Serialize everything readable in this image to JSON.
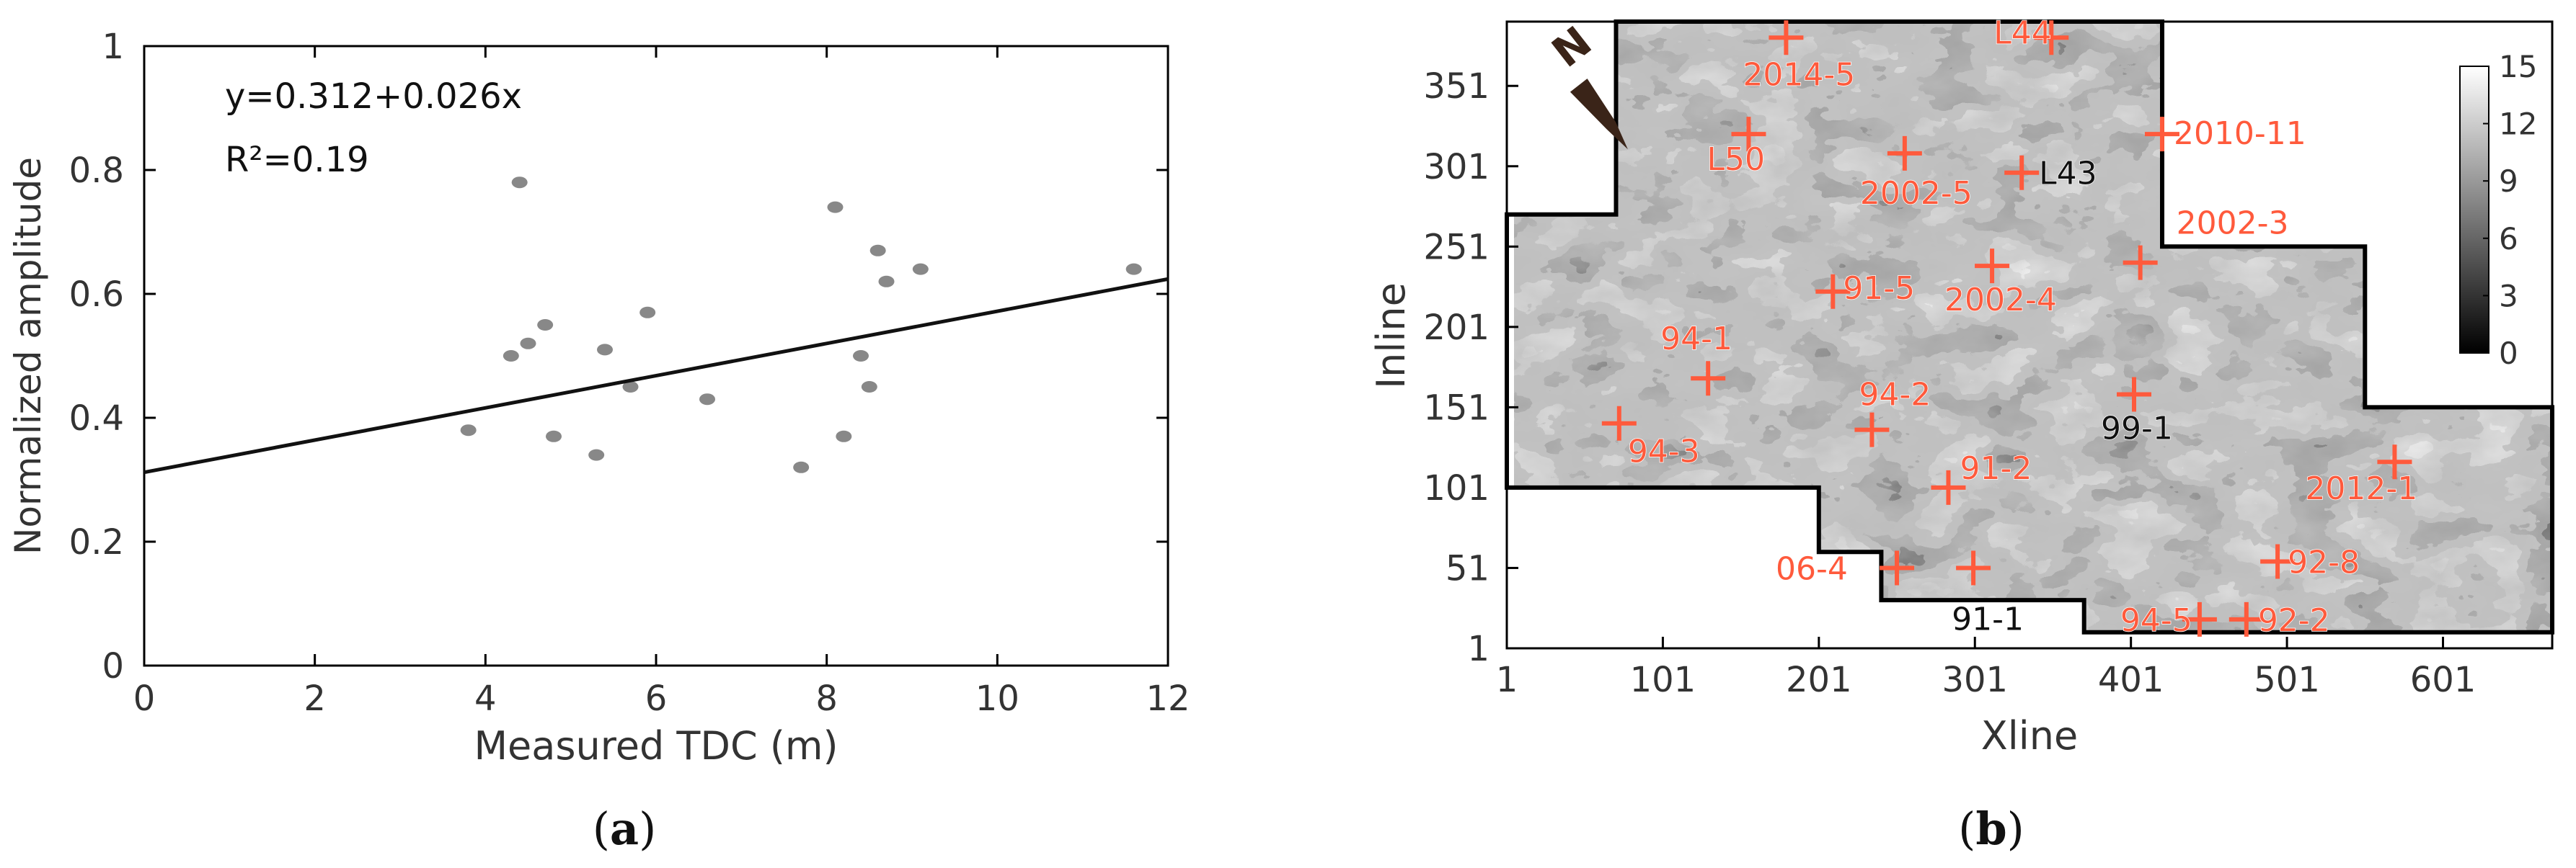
{
  "chart_data": [
    {
      "panel_label": "(a)",
      "panel_letter": "a",
      "type": "scatter",
      "xlabel": "Measured TDC (m)",
      "ylabel": "Normalized amplitude",
      "xlim": [
        0,
        12
      ],
      "ylim": [
        0,
        1
      ],
      "x_ticks": [
        "0",
        "2",
        "4",
        "6",
        "8",
        "10",
        "12"
      ],
      "y_ticks": [
        "0",
        "0.2",
        "0.4",
        "0.6",
        "0.8",
        "1"
      ],
      "grid": false,
      "point_color": "#888888",
      "line_color": "#111111",
      "points": [
        [
          3.8,
          0.38
        ],
        [
          4.3,
          0.5
        ],
        [
          4.4,
          0.78
        ],
        [
          4.5,
          0.52
        ],
        [
          4.7,
          0.55
        ],
        [
          4.8,
          0.37
        ],
        [
          5.3,
          0.34
        ],
        [
          5.4,
          0.51
        ],
        [
          5.7,
          0.45
        ],
        [
          5.9,
          0.57
        ],
        [
          6.6,
          0.43
        ],
        [
          7.7,
          0.32
        ],
        [
          8.1,
          0.74
        ],
        [
          8.2,
          0.37
        ],
        [
          8.4,
          0.5
        ],
        [
          8.5,
          0.45
        ],
        [
          8.6,
          0.67
        ],
        [
          8.7,
          0.62
        ],
        [
          9.1,
          0.64
        ],
        [
          11.6,
          0.64
        ]
      ],
      "fit": {
        "intercept": 0.312,
        "slope": 0.026
      },
      "annotations": [
        "y=0.312+0.026x",
        "R²=0.19"
      ]
    },
    {
      "panel_label": "(b)",
      "panel_letter": "b",
      "type": "heatmap",
      "xlabel": "Xline",
      "ylabel": "Inline",
      "xlim": [
        1,
        671
      ],
      "ylim": [
        1,
        391
      ],
      "x_ticks": [
        "1",
        "101",
        "201",
        "301",
        "401",
        "501",
        "601"
      ],
      "y_ticks": [
        "1",
        "51",
        "101",
        "151",
        "201",
        "251",
        "301",
        "351"
      ],
      "colorbar": {
        "min": 0,
        "max": 15,
        "ticks": [
          "0",
          "3",
          "6",
          "9",
          "12",
          "15"
        ],
        "colormap": "gray"
      },
      "north_arrow": "N",
      "boundary": [
        [
          1,
          101
        ],
        [
          1,
          271
        ],
        [
          71,
          271
        ],
        [
          71,
          301
        ],
        [
          71,
          301
        ],
        [
          71,
          391
        ],
        [
          421,
          391
        ],
        [
          421,
          271
        ],
        [
          421,
          251
        ],
        [
          551,
          251
        ],
        [
          551,
          221
        ],
        [
          551,
          151
        ],
        [
          671,
          151
        ],
        [
          671,
          11
        ],
        [
          371,
          11
        ],
        [
          371,
          31
        ],
        [
          241,
          31
        ],
        [
          241,
          61
        ],
        [
          201,
          61
        ],
        [
          201,
          101
        ],
        [
          1,
          101
        ]
      ],
      "marker_color": "#ff5a3c",
      "wells": [
        {
          "name": "L44",
          "x": 350,
          "y": 381,
          "label_color": "#ff5a3c"
        },
        {
          "name": "2014-5",
          "x": 180,
          "y": 381,
          "label_color": "#ff5a3c"
        },
        {
          "name": "2010-11",
          "x": 421,
          "y": 321,
          "label_color": "#ff5a3c"
        },
        {
          "name": "L50",
          "x": 156,
          "y": 321,
          "label_color": "#ff5a3c"
        },
        {
          "name": "2002-5",
          "x": 256,
          "y": 309,
          "label_color": "#ff5a3c"
        },
        {
          "name": "L43",
          "x": 331,
          "y": 297,
          "label_color": "#111111"
        },
        {
          "name": "2002-3",
          "x": 407,
          "y": 241,
          "label_color": "#ff5a3c"
        },
        {
          "name": "2002-4",
          "x": 312,
          "y": 239,
          "label_color": "#ff5a3c"
        },
        {
          "name": "91-5",
          "x": 210,
          "y": 223,
          "label_color": "#ff5a3c"
        },
        {
          "name": "94-1",
          "x": 130,
          "y": 169,
          "label_color": "#ff5a3c"
        },
        {
          "name": "99-1",
          "x": 403,
          "y": 159,
          "label_color": "#111111"
        },
        {
          "name": "94-3",
          "x": 73,
          "y": 141,
          "label_color": "#ff5a3c"
        },
        {
          "name": "94-2",
          "x": 235,
          "y": 137,
          "label_color": "#ff5a3c"
        },
        {
          "name": "2012-1",
          "x": 570,
          "y": 117,
          "label_color": "#ff5a3c"
        },
        {
          "name": "91-2",
          "x": 284,
          "y": 101,
          "label_color": "#ff5a3c"
        },
        {
          "name": "92-8",
          "x": 495,
          "y": 55,
          "label_color": "#ff5a3c"
        },
        {
          "name": "06-4",
          "x": 251,
          "y": 51,
          "label_color": "#ff5a3c"
        },
        {
          "name": "91-1",
          "x": 300,
          "y": 51,
          "label_color": "#111111"
        },
        {
          "name": "94-5",
          "x": 445,
          "y": 19,
          "label_color": "#ff5a3c"
        },
        {
          "name": "92-2",
          "x": 475,
          "y": 19,
          "label_color": "#ff5a3c"
        }
      ]
    }
  ]
}
